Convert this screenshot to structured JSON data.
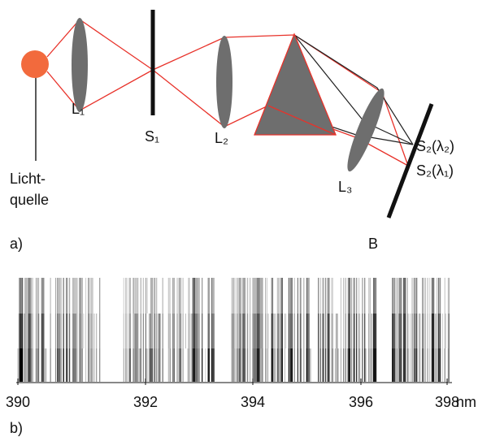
{
  "labels": {
    "lens1": "L₁",
    "slit1": "S₁",
    "lens2": "L₂",
    "lens3": "L₃",
    "image_lambda2": "S₂(λ₂)",
    "image_lambda1": "S₂(λ₁)",
    "source": [
      "Licht-",
      "quelle"
    ],
    "part_a": "a)",
    "screen": "B",
    "part_b": "b)"
  },
  "spectrum_axis": {
    "ticks": [
      390,
      392,
      394,
      396,
      398
    ],
    "unit": "nm"
  }
}
